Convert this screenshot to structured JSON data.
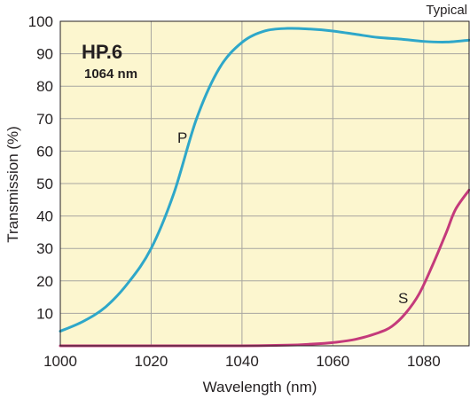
{
  "chart_data": {
    "type": "line",
    "title": "HP.6",
    "subtitle": "1064 nm",
    "corner_note": "Typical",
    "xlabel": "Wavelength (nm)",
    "ylabel": "Transmission (%)",
    "xlim": [
      1000,
      1090
    ],
    "ylim": [
      0,
      100
    ],
    "x_ticks": [
      1000,
      1020,
      1040,
      1060,
      1080
    ],
    "y_ticks": [
      10,
      20,
      30,
      40,
      50,
      60,
      70,
      80,
      90,
      100
    ],
    "grid": true,
    "plot_background": "#fcf6cf",
    "grid_color": "#a7a5a0",
    "series": [
      {
        "name": "P",
        "color": "#2ea7c9",
        "x": [
          1000,
          1005,
          1010,
          1015,
          1020,
          1025,
          1030,
          1035,
          1040,
          1045,
          1050,
          1055,
          1060,
          1065,
          1070,
          1075,
          1080,
          1085,
          1090
        ],
        "y": [
          4.5,
          7.5,
          12,
          19.5,
          30,
          47,
          70,
          85.5,
          93.5,
          97,
          97.8,
          97.6,
          97,
          96,
          95,
          94.5,
          93.8,
          93.6,
          94.2
        ]
      },
      {
        "name": "S",
        "color": "#c43a7b",
        "x": [
          1000,
          1010,
          1020,
          1030,
          1040,
          1050,
          1055,
          1060,
          1065,
          1070,
          1073,
          1076,
          1079,
          1082,
          1085,
          1087,
          1090
        ],
        "y": [
          0,
          0,
          0,
          0,
          0,
          0.2,
          0.5,
          1,
          2,
          4,
          6,
          10,
          16,
          25,
          35,
          42,
          48
        ]
      }
    ]
  }
}
